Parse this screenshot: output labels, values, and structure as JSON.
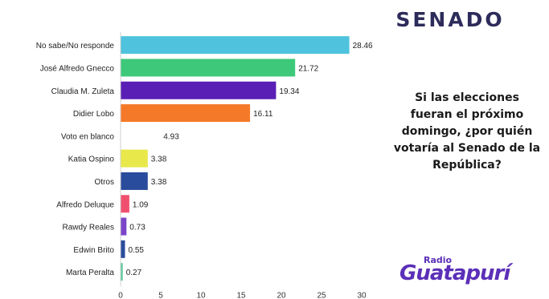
{
  "header": {
    "title": "SENADO"
  },
  "question": {
    "text": "Si las elecciones fueran el próximo domingo, ¿por quién votaría al Senado de la República?"
  },
  "logo": {
    "small_text": "Radio",
    "brand_text": "Guatapurí"
  },
  "chart_data": {
    "type": "bar",
    "orientation": "horizontal",
    "title": "",
    "xlabel": "",
    "ylabel": "",
    "xlim": [
      0,
      30
    ],
    "x_ticks": [
      "0",
      "5",
      "10",
      "15",
      "20",
      "25",
      "30"
    ],
    "grid": false,
    "categories": [
      "No sabe/No responde",
      "José Alfredo Gnecco",
      "Claudia M. Zuleta",
      "Didier Lobo",
      "Voto en blanco",
      "Katia Ospino",
      "Otros",
      "Alfredo Deluque",
      "Rawdy Reales",
      "Edwin Brito",
      "Marta Peralta"
    ],
    "values": [
      28.46,
      21.72,
      19.34,
      16.11,
      4.93,
      3.38,
      3.38,
      1.09,
      0.73,
      0.55,
      0.27
    ],
    "value_labels": [
      "28.46",
      "21.72",
      "19.34",
      "16.11",
      "4.93",
      "3.38",
      "3.38",
      "1.09",
      "0.73",
      "0.55",
      "0.27"
    ],
    "colors": [
      "#4fc3dd",
      "#3ec97a",
      "#5a1fb5",
      "#f47a2a",
      "#ffffff",
      "#e8e84a",
      "#2a4c9c",
      "#f0506e",
      "#7b45c8",
      "#2a4c9c",
      "#5cc9a0"
    ]
  }
}
